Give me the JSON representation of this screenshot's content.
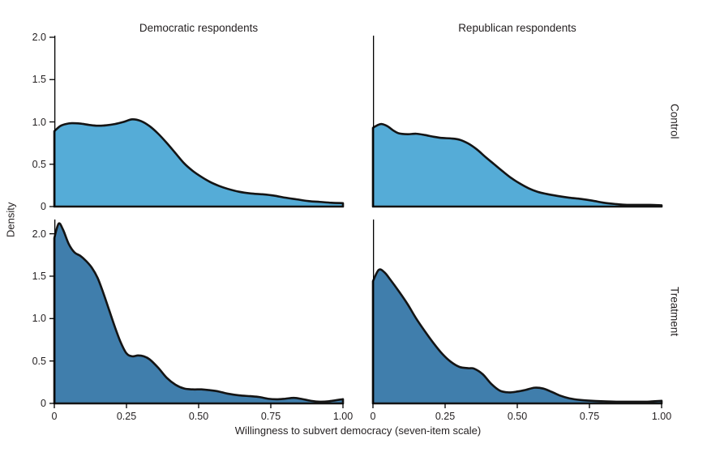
{
  "figure": {
    "xlabel": "Willingness to subvert democracy (seven-item scale)",
    "ylabel": "Density",
    "col_titles": [
      "Democratic respondents",
      "Republican respondents"
    ],
    "row_labels": [
      "Control",
      "Treatment"
    ],
    "x_tick_labels": [
      "0",
      "0.25",
      "0.50",
      "0.75",
      "1.00"
    ],
    "y_tick_labels": [
      "2.0",
      "1.5",
      "1.0",
      "0.5",
      "0"
    ],
    "colors": {
      "control_fill": "#55acd7",
      "treatment_fill": "#407eac",
      "curve_outline": "#141414",
      "axis": "#000000",
      "text": "#231f20"
    }
  },
  "chart_data": [
    {
      "type": "area",
      "panel": "control-democratic",
      "column": "Democratic respondents",
      "row": "Control",
      "xlim": [
        0,
        1
      ],
      "ylim": [
        0,
        2
      ],
      "x": [
        0,
        0.02,
        0.04,
        0.06,
        0.09,
        0.12,
        0.15,
        0.18,
        0.21,
        0.24,
        0.27,
        0.3,
        0.33,
        0.36,
        0.39,
        0.42,
        0.45,
        0.48,
        0.51,
        0.54,
        0.57,
        0.6,
        0.64,
        0.68,
        0.72,
        0.76,
        0.8,
        0.84,
        0.88,
        0.92,
        0.96,
        1.0
      ],
      "density": [
        0.89,
        0.95,
        0.975,
        0.985,
        0.98,
        0.965,
        0.955,
        0.96,
        0.975,
        1.0,
        1.03,
        1.01,
        0.95,
        0.86,
        0.75,
        0.63,
        0.51,
        0.42,
        0.35,
        0.29,
        0.245,
        0.21,
        0.175,
        0.155,
        0.145,
        0.13,
        0.105,
        0.085,
        0.065,
        0.055,
        0.045,
        0.04
      ]
    },
    {
      "type": "area",
      "panel": "control-republican",
      "column": "Republican respondents",
      "row": "Control",
      "xlim": [
        0,
        1
      ],
      "ylim": [
        0,
        2
      ],
      "x": [
        0,
        0.015,
        0.03,
        0.05,
        0.07,
        0.09,
        0.12,
        0.15,
        0.18,
        0.21,
        0.24,
        0.27,
        0.3,
        0.33,
        0.36,
        0.39,
        0.42,
        0.45,
        0.48,
        0.51,
        0.54,
        0.57,
        0.6,
        0.64,
        0.68,
        0.72,
        0.76,
        0.8,
        0.84,
        0.88,
        0.92,
        0.96,
        1.0
      ],
      "density": [
        0.93,
        0.96,
        0.975,
        0.95,
        0.9,
        0.865,
        0.855,
        0.86,
        0.845,
        0.825,
        0.81,
        0.805,
        0.79,
        0.745,
        0.675,
        0.585,
        0.5,
        0.415,
        0.335,
        0.27,
        0.215,
        0.175,
        0.15,
        0.125,
        0.105,
        0.09,
        0.07,
        0.045,
        0.03,
        0.02,
        0.02,
        0.02,
        0.015
      ]
    },
    {
      "type": "area",
      "panel": "treatment-democratic",
      "column": "Democratic respondents",
      "row": "Treatment",
      "xlim": [
        0,
        1
      ],
      "ylim": [
        0,
        2
      ],
      "x": [
        0,
        0.015,
        0.03,
        0.05,
        0.07,
        0.09,
        0.11,
        0.13,
        0.15,
        0.17,
        0.19,
        0.21,
        0.23,
        0.25,
        0.27,
        0.29,
        0.31,
        0.33,
        0.36,
        0.39,
        0.42,
        0.45,
        0.48,
        0.51,
        0.54,
        0.57,
        0.6,
        0.64,
        0.68,
        0.71,
        0.74,
        0.77,
        0.8,
        0.83,
        0.86,
        0.89,
        0.92,
        0.95,
        1.0
      ],
      "density": [
        1.95,
        2.12,
        2.05,
        1.88,
        1.78,
        1.74,
        1.68,
        1.6,
        1.48,
        1.3,
        1.1,
        0.9,
        0.72,
        0.59,
        0.555,
        0.565,
        0.555,
        0.52,
        0.42,
        0.3,
        0.22,
        0.175,
        0.165,
        0.165,
        0.155,
        0.14,
        0.115,
        0.095,
        0.085,
        0.075,
        0.055,
        0.048,
        0.055,
        0.065,
        0.05,
        0.03,
        0.02,
        0.025,
        0.05
      ]
    },
    {
      "type": "area",
      "panel": "treatment-republican",
      "column": "Republican respondents",
      "row": "Treatment",
      "xlim": [
        0,
        1
      ],
      "ylim": [
        0,
        2
      ],
      "x": [
        0,
        0.02,
        0.04,
        0.06,
        0.09,
        0.12,
        0.15,
        0.18,
        0.21,
        0.24,
        0.27,
        0.3,
        0.33,
        0.35,
        0.38,
        0.41,
        0.44,
        0.47,
        0.5,
        0.53,
        0.56,
        0.59,
        0.62,
        0.65,
        0.68,
        0.72,
        0.76,
        0.8,
        0.85,
        0.9,
        0.95,
        1.0
      ],
      "density": [
        1.44,
        1.575,
        1.545,
        1.46,
        1.32,
        1.17,
        1.0,
        0.85,
        0.71,
        0.585,
        0.49,
        0.43,
        0.415,
        0.41,
        0.345,
        0.23,
        0.15,
        0.13,
        0.14,
        0.16,
        0.185,
        0.175,
        0.135,
        0.09,
        0.06,
        0.04,
        0.03,
        0.025,
        0.02,
        0.02,
        0.02,
        0.03
      ]
    }
  ]
}
